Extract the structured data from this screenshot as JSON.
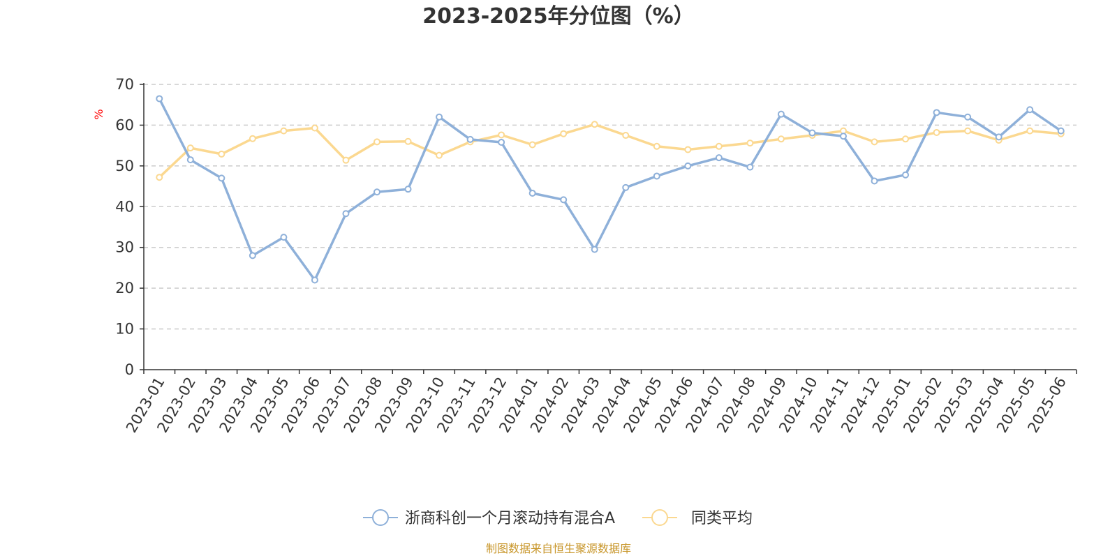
{
  "chart_data": {
    "type": "line",
    "title": "2023-2025年分位图（%）",
    "ylabel": "%",
    "xlabel": "",
    "ylim": [
      0,
      70
    ],
    "yticks": [
      0,
      10,
      20,
      30,
      40,
      50,
      60,
      70
    ],
    "grid": "horizontal-dashed",
    "legend_position": "bottom-center",
    "categories": [
      "2023-01",
      "2023-02",
      "2023-03",
      "2023-04",
      "2023-05",
      "2023-06",
      "2023-07",
      "2023-08",
      "2023-09",
      "2023-10",
      "2023-11",
      "2023-12",
      "2024-01",
      "2024-02",
      "2024-03",
      "2024-04",
      "2024-05",
      "2024-06",
      "2024-07",
      "2024-08",
      "2024-09",
      "2024-10",
      "2024-11",
      "2024-12",
      "2025-01",
      "2025-02",
      "2025-03",
      "2025-04",
      "2025-05",
      "2025-06"
    ],
    "series": [
      {
        "name": "浙商科创一个月滚动持有混合A",
        "color": "#8eb0d9",
        "values": [
          66.5,
          51.5,
          47,
          28,
          32.5,
          22,
          38.3,
          43.6,
          44.3,
          62,
          56.5,
          55.8,
          43.3,
          41.7,
          29.5,
          44.7,
          47.5,
          50,
          52,
          49.7,
          62.7,
          58.1,
          57.3,
          46.3,
          47.8,
          63.1,
          62,
          57.1,
          63.8,
          58.6
        ]
      },
      {
        "name": "同类平均",
        "color": "#fbd890",
        "values": [
          47.2,
          54.4,
          52.9,
          56.7,
          58.6,
          59.3,
          51.4,
          55.9,
          56,
          52.6,
          55.9,
          57.6,
          55.2,
          57.9,
          60.2,
          57.5,
          54.8,
          54,
          54.8,
          55.6,
          56.6,
          57.5,
          58.6,
          55.9,
          56.6,
          58.2,
          58.6,
          56.3,
          58.6,
          57.9
        ]
      }
    ]
  },
  "source_text": "制图数据来自恒生聚源数据库"
}
